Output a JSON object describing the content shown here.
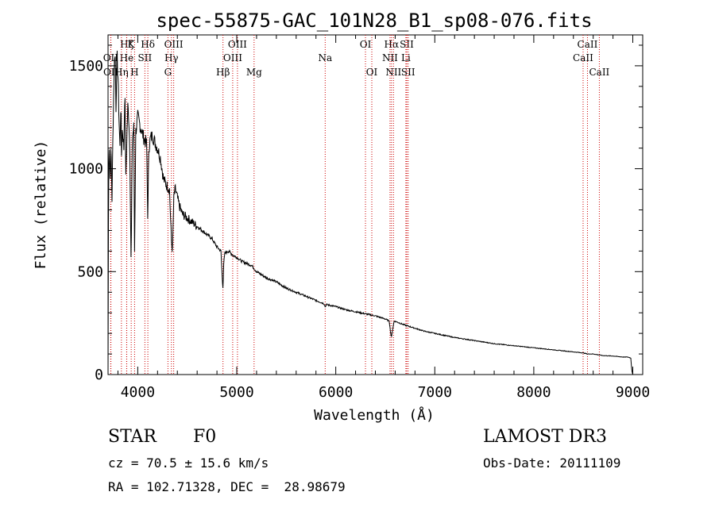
{
  "chart_data": {
    "type": "line",
    "title": "spec-55875-GAC_101N28_B1_sp08-076.fits",
    "xlabel": "Wavelength (Å)",
    "ylabel": "Flux (relative)",
    "xlim": [
      3700,
      9100
    ],
    "ylim": [
      0,
      1650
    ],
    "x_ticks": [
      4000,
      5000,
      6000,
      7000,
      8000,
      9000
    ],
    "y_ticks": [
      0,
      500,
      1000,
      1500
    ],
    "spectrum_anchor_points": {
      "x": [
        3700,
        3705,
        3710,
        3720,
        3730,
        3740,
        3750,
        3760,
        3770,
        3780,
        3790,
        3800,
        3810,
        3820,
        3830,
        3835,
        3845,
        3860,
        3870,
        3880,
        3890,
        3900,
        3910,
        3920,
        3933,
        3945,
        3960,
        3968,
        3980,
        4000,
        4030,
        4060,
        4090,
        4101,
        4112,
        4130,
        4150,
        4180,
        4200,
        4230,
        4260,
        4290,
        4320,
        4340,
        4350,
        4365,
        4380,
        4420,
        4450,
        4500,
        4550,
        4600,
        4650,
        4700,
        4750,
        4800,
        4840,
        4855,
        4861,
        4868,
        4880,
        4920,
        4960,
        5000,
        5050,
        5100,
        5150,
        5200,
        5300,
        5400,
        5500,
        5600,
        5700,
        5800,
        5880,
        5893,
        5905,
        6000,
        6100,
        6200,
        6300,
        6400,
        6500,
        6540,
        6555,
        6563,
        6571,
        6590,
        6620,
        6700,
        6800,
        6900,
        7000,
        7200,
        7400,
        7600,
        7800,
        8000,
        8200,
        8400,
        8500,
        8542,
        8600,
        8662,
        8700,
        8800,
        8900,
        8950,
        8980,
        8990,
        9000
      ],
      "y": [
        0,
        900,
        1150,
        950,
        1100,
        850,
        1200,
        1450,
        1600,
        1300,
        1550,
        1450,
        1250,
        1100,
        1350,
        1050,
        1200,
        1100,
        1400,
        950,
        1150,
        1300,
        1250,
        1100,
        520,
        1150,
        1200,
        600,
        1180,
        1250,
        1200,
        1150,
        1120,
        740,
        1100,
        1150,
        1160,
        1120,
        1100,
        1050,
        950,
        920,
        900,
        650,
        600,
        870,
        900,
        820,
        780,
        760,
        740,
        720,
        700,
        680,
        660,
        620,
        600,
        450,
        420,
        540,
        590,
        600,
        580,
        570,
        550,
        540,
        530,
        500,
        470,
        450,
        420,
        400,
        380,
        360,
        345,
        330,
        340,
        330,
        315,
        305,
        295,
        285,
        270,
        260,
        200,
        180,
        210,
        260,
        255,
        240,
        225,
        210,
        200,
        180,
        165,
        150,
        140,
        130,
        120,
        110,
        105,
        100,
        100,
        95,
        92,
        90,
        85,
        85,
        80,
        20,
        0
      ]
    },
    "line_markers": [
      {
        "label": "Hζ",
        "x": 3889,
        "row": 0
      },
      {
        "label": "K",
        "x": 3934,
        "row": 0
      },
      {
        "label": "Hδ",
        "x": 4102,
        "row": 0
      },
      {
        "label": "OIII",
        "x": 4363,
        "row": 0
      },
      {
        "label": "OIII",
        "x": 5007,
        "row": 0
      },
      {
        "label": "OI",
        "x": 6300,
        "row": 0
      },
      {
        "label": "Hα",
        "x": 6563,
        "row": 0
      },
      {
        "label": "SII",
        "x": 6717,
        "row": 0
      },
      {
        "label": "CaII",
        "x": 8542,
        "row": 0
      },
      {
        "label": "OII",
        "x": 3727,
        "row": 1
      },
      {
        "label": "He",
        "x": 3888,
        "row": 1
      },
      {
        "label": "SII",
        "x": 4072,
        "row": 1
      },
      {
        "label": "Hγ",
        "x": 4340,
        "row": 1
      },
      {
        "label": "OIII",
        "x": 4959,
        "row": 1
      },
      {
        "label": "Na",
        "x": 5893,
        "row": 1
      },
      {
        "label": "NII",
        "x": 6548,
        "row": 1
      },
      {
        "label": "Li",
        "x": 6708,
        "row": 1
      },
      {
        "label": "CaII",
        "x": 8498,
        "row": 1
      },
      {
        "label": "OII",
        "x": 3729,
        "row": 2
      },
      {
        "label": "Hη",
        "x": 3835,
        "row": 2
      },
      {
        "label": "H",
        "x": 3968,
        "row": 2
      },
      {
        "label": "G",
        "x": 4305,
        "row": 2
      },
      {
        "label": "Hβ",
        "x": 4861,
        "row": 2
      },
      {
        "label": "Mg",
        "x": 5175,
        "row": 2
      },
      {
        "label": "OI",
        "x": 6364,
        "row": 2
      },
      {
        "label": "NII",
        "x": 6583,
        "row": 2
      },
      {
        "label": "SII",
        "x": 6731,
        "row": 2
      },
      {
        "label": "CaII",
        "x": 8662,
        "row": 2
      }
    ]
  },
  "info": {
    "object_class": "STAR",
    "subclass": "F0",
    "survey": "LAMOST DR3",
    "cz": "cz = 70.5 ± 15.6 km/s",
    "obs_date": "Obs-Date: 20111109",
    "coords": "RA = 102.71328, DEC =  28.98679"
  }
}
